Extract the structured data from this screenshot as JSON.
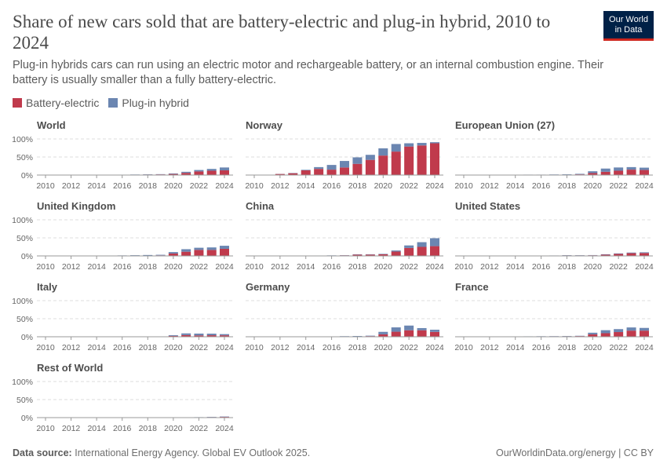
{
  "header": {
    "title": "Share of new cars sold that are battery-electric and plug-in hybrid, 2010 to 2024",
    "subtitle": "Plug-in hybrids cars can run using an electric motor and rechargeable battery, or an internal combustion engine. Their battery is usually smaller than a fully battery-electric.",
    "logo_line1": "Our World",
    "logo_line2": "in Data"
  },
  "footer": {
    "source_label": "Data source:",
    "source_text": "International Energy Agency. Global EV Outlook 2025.",
    "license": "OurWorldinData.org/energy | CC BY"
  },
  "colors": {
    "battery_electric": "#c03a4c",
    "plug_in_hybrid": "#6b86b1"
  },
  "chart_data": {
    "type": "bar",
    "stacked": true,
    "legend": [
      "Battery-electric",
      "Plug-in hybrid"
    ],
    "legend_placement": "top-left",
    "x": [
      2010,
      2011,
      2012,
      2013,
      2014,
      2015,
      2016,
      2017,
      2018,
      2019,
      2020,
      2021,
      2022,
      2023,
      2024
    ],
    "x_tick_labels": [
      "2010",
      "2012",
      "2014",
      "2016",
      "2018",
      "2020",
      "2022",
      "2024"
    ],
    "y_tick_labels": [
      "0%",
      "50%",
      "100%"
    ],
    "ylim": [
      0,
      100
    ],
    "grid": true,
    "panels": [
      {
        "name": "World",
        "series": [
          {
            "name": "Battery-electric",
            "values": [
              0,
              0,
              0.1,
              0.2,
              0.3,
              0.5,
              0.7,
              1,
              1.5,
              1.8,
              3,
              6,
              10,
              12,
              13
            ]
          },
          {
            "name": "Plug-in hybrid",
            "values": [
              0,
              0,
              0.1,
              0.1,
              0.2,
              0.3,
              0.4,
              0.5,
              0.7,
              0.7,
              1.5,
              3,
              4,
              5,
              8
            ]
          }
        ]
      },
      {
        "name": "Norway",
        "series": [
          {
            "name": "Battery-electric",
            "values": [
              0,
              0.3,
              3,
              5,
              13,
              17,
              15,
              21,
              31,
              42,
              54,
              65,
              79,
              82,
              88
            ]
          },
          {
            "name": "Plug-in hybrid",
            "values": [
              0,
              0,
              0.3,
              0.8,
              1.5,
              5,
              13,
              18,
              18,
              14,
              20,
              21,
              9,
              7,
              3
            ]
          }
        ]
      },
      {
        "name": "European Union (27)",
        "series": [
          {
            "name": "Battery-electric",
            "values": [
              0,
              0,
              0.1,
              0.3,
              0.5,
              0.6,
              0.6,
              0.8,
              1,
              1.9,
              5.4,
              9.1,
              12,
              15,
              14
            ]
          },
          {
            "name": "Plug-in hybrid",
            "values": [
              0,
              0,
              0.1,
              0.2,
              0.3,
              0.6,
              0.6,
              0.8,
              1,
              1.5,
              5.1,
              8.9,
              9,
              7,
              6.5
            ]
          }
        ]
      },
      {
        "name": "United Kingdom",
        "series": [
          {
            "name": "Battery-electric",
            "values": [
              0,
              0,
              0.1,
              0.2,
              0.3,
              0.3,
              0.4,
              0.5,
              0.7,
              1.6,
              6.6,
              11.6,
              16.6,
              16.5,
              19.6
            ]
          },
          {
            "name": "Plug-in hybrid",
            "values": [
              0,
              0,
              0,
              0.1,
              0.4,
              0.8,
              1,
              1.4,
              1.8,
              1.5,
              4,
              7,
              6,
              7,
              8.5
            ]
          }
        ]
      },
      {
        "name": "China",
        "series": [
          {
            "name": "Battery-electric",
            "values": [
              0,
              0,
              0.1,
              0.1,
              0.2,
              0.8,
              1.1,
              1.7,
              3.5,
              3.6,
              4.4,
              12,
              22,
              25,
              27
            ]
          },
          {
            "name": "Plug-in hybrid",
            "values": [
              0,
              0,
              0,
              0,
              0.1,
              0.3,
              0.4,
              0.5,
              1,
              1,
              1.2,
              3,
              7,
              13,
              22
            ]
          }
        ]
      },
      {
        "name": "United States",
        "series": [
          {
            "name": "Battery-electric",
            "values": [
              0,
              0.1,
              0.2,
              0.5,
              0.4,
              0.4,
              0.5,
              0.6,
              1.5,
              1.4,
              1.7,
              3.3,
              5.5,
              7.5,
              8
            ]
          },
          {
            "name": "Plug-in hybrid",
            "values": [
              0,
              0.1,
              0.3,
              0.4,
              0.4,
              0.3,
              0.4,
              0.6,
              0.7,
              0.6,
              0.6,
              1.2,
              1.4,
              1.7,
              2
            ]
          }
        ]
      },
      {
        "name": "Italy",
        "series": [
          {
            "name": "Battery-electric",
            "values": [
              0,
              0,
              0,
              0,
              0,
              0.1,
              0.1,
              0.1,
              0.3,
              0.6,
              2.4,
              4.6,
              3.7,
              4.2,
              4
            ]
          },
          {
            "name": "Plug-in hybrid",
            "values": [
              0,
              0,
              0,
              0,
              0,
              0,
              0.1,
              0.1,
              0.2,
              0.3,
              2,
              4.7,
              5.1,
              4.4,
              3.3
            ]
          }
        ]
      },
      {
        "name": "Germany",
        "series": [
          {
            "name": "Battery-electric",
            "values": [
              0,
              0,
              0.1,
              0.2,
              0.4,
              0.4,
              0.3,
              0.7,
              1,
              1.8,
              6.7,
              14,
              18,
              18,
              13.5
            ]
          },
          {
            "name": "Plug-in hybrid",
            "values": [
              0,
              0,
              0,
              0,
              0.2,
              0.4,
              0.4,
              0.9,
              1.1,
              1.2,
              6.9,
              12,
              13,
              6,
              6
            ]
          }
        ]
      },
      {
        "name": "France",
        "series": [
          {
            "name": "Battery-electric",
            "values": [
              0,
              0,
              0.3,
              0.6,
              0.7,
              0.9,
              1.1,
              1.2,
              1.5,
              1.9,
              6.7,
              9.8,
              13,
              17,
              17
            ]
          },
          {
            "name": "Plug-in hybrid",
            "values": [
              0,
              0,
              0,
              0,
              0.1,
              0.3,
              0.4,
              0.5,
              0.7,
              0.8,
              4.5,
              8.4,
              8.2,
              8.8,
              7.5
            ]
          }
        ]
      },
      {
        "name": "Rest of World",
        "series": [
          {
            "name": "Battery-electric",
            "values": [
              0,
              0,
              0,
              0,
              0,
              0,
              0,
              0,
              0.1,
              0.2,
              0.3,
              0.5,
              0.8,
              1.5,
              2
            ]
          },
          {
            "name": "Plug-in hybrid",
            "values": [
              0,
              0,
              0,
              0,
              0,
              0,
              0,
              0,
              0.1,
              0.1,
              0.2,
              0.4,
              0.5,
              0.7,
              1
            ]
          }
        ]
      }
    ]
  }
}
